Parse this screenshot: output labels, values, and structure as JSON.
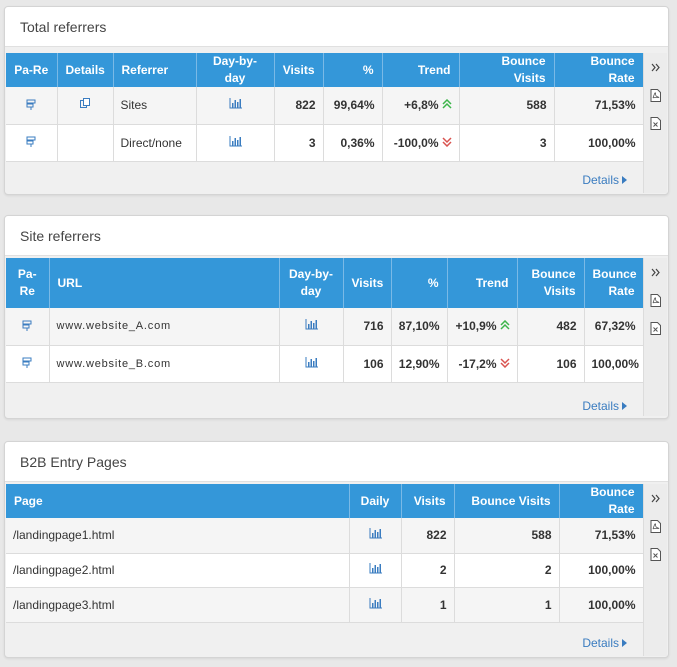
{
  "panels": {
    "total_referrers": {
      "title": "Total referrers",
      "headers": {
        "pare": "Pa-Re",
        "details": "Details",
        "referrer": "Referrer",
        "daybyday": "Day-by-day",
        "visits": "Visits",
        "percent": "%",
        "trend": "Trend",
        "bounce_visits": "Bounce Visits",
        "bounce_rate": "Bounce Rate"
      },
      "rows": [
        {
          "referrer": "Sites",
          "visits": "822",
          "percent": "99,64%",
          "trend": "+6,8%",
          "trend_dir": "up",
          "bounce_visits": "588",
          "bounce_rate": "71,53%"
        },
        {
          "referrer": "Direct/none",
          "visits": "3",
          "percent": "0,36%",
          "trend": "-100,0%",
          "trend_dir": "down",
          "bounce_visits": "3",
          "bounce_rate": "100,00%"
        }
      ],
      "details_link": "Details"
    },
    "site_referrers": {
      "title": "Site referrers",
      "headers": {
        "pare_1": "Pa-",
        "pare_2": "Re",
        "url": "URL",
        "daybyday_1": "Day-by-",
        "daybyday_2": "day",
        "visits": "Visits",
        "percent": "%",
        "trend": "Trend",
        "bounce_visits_1": "Bounce",
        "bounce_visits_2": "Visits",
        "bounce_rate_1": "Bounce",
        "bounce_rate_2": "Rate"
      },
      "rows": [
        {
          "url": "www.website_A.com",
          "visits": "716",
          "percent": "87,10%",
          "trend": "+10,9%",
          "trend_dir": "up",
          "bounce_visits": "482",
          "bounce_rate": "67,32%"
        },
        {
          "url": "www.website_B.com",
          "visits": "106",
          "percent": "12,90%",
          "trend": "-17,2%",
          "trend_dir": "down",
          "bounce_visits": "106",
          "bounce_rate": "100,00%"
        }
      ],
      "details_link": "Details"
    },
    "b2b_entry_pages": {
      "title": "B2B Entry Pages",
      "headers": {
        "page": "Page",
        "daily": "Daily",
        "visits": "Visits",
        "bounce_visits": "Bounce Visits",
        "bounce_rate": "Bounce Rate"
      },
      "rows": [
        {
          "page": "/landingpage1.html",
          "visits": "822",
          "bounce_visits": "588",
          "bounce_rate": "71,53%"
        },
        {
          "page": "/landingpage2.html",
          "visits": "2",
          "bounce_visits": "2",
          "bounce_rate": "100,00%"
        },
        {
          "page": "/landingpage3.html",
          "visits": "1",
          "bounce_visits": "1",
          "bounce_rate": "100,00%"
        }
      ],
      "details_link": "Details"
    }
  },
  "icons": {
    "pare": "pa-re-icon",
    "details": "copy-details-icon",
    "chart": "bar-chart-icon",
    "expand": "double-chevron-right-icon",
    "pdf": "pdf-export-icon",
    "excel": "excel-export-icon",
    "trend_up": "double-chevron-up-icon",
    "trend_down": "double-chevron-down-icon"
  },
  "colors": {
    "header_blue": "#3497d9",
    "link_blue": "#3a7cc0",
    "trend_up": "#3cb54a",
    "trend_down": "#d9534f"
  }
}
